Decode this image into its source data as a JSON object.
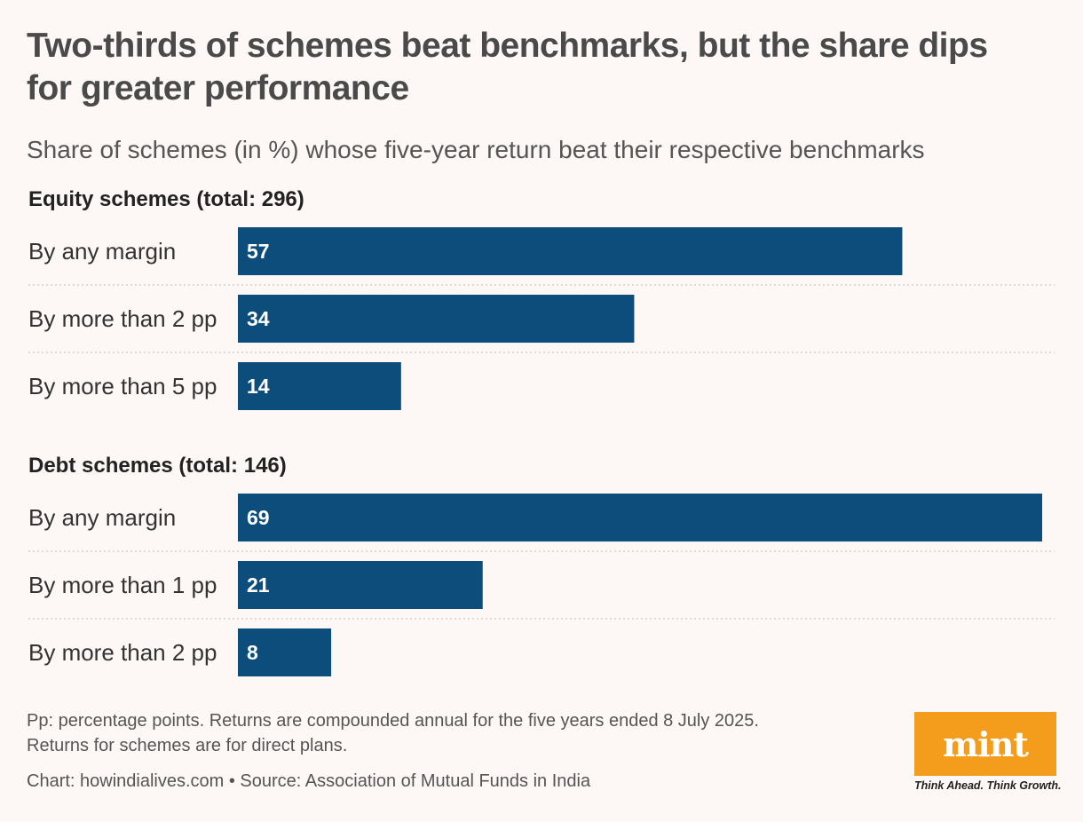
{
  "title": "Two-thirds of schemes beat benchmarks, but the share dips for greater performance",
  "subtitle": "Share of schemes (in %) whose five-year return beat their respective benchmarks",
  "colors": {
    "bar": "#0d4d7b",
    "bar_label": "#ffffff",
    "divider": "#c9c9c9"
  },
  "chart_data": [
    {
      "type": "bar",
      "orientation": "horizontal",
      "title": "Equity schemes (total: 296)",
      "categories": [
        "By any margin",
        "By more than 2 pp",
        "By more than 5 pp"
      ],
      "values": [
        57,
        34,
        14
      ],
      "xlim": [
        0,
        69
      ],
      "unit": "%"
    },
    {
      "type": "bar",
      "orientation": "horizontal",
      "title": "Debt schemes (total: 146)",
      "categories": [
        "By any margin",
        "By more than 1 pp",
        "By more than 2 pp"
      ],
      "values": [
        69,
        21,
        8
      ],
      "xlim": [
        0,
        69
      ],
      "unit": "%"
    }
  ],
  "footnote": {
    "line1": "Pp: percentage points. Returns are compounded annual for the five years ended 8 July 2025.",
    "line2": "Returns for schemes are for direct plans.",
    "credit": "Chart: howindialives.com • Source: Association of Mutual Funds in India"
  },
  "logo": {
    "wordmark": "mint",
    "tagline": "Think Ahead. Think Growth."
  }
}
